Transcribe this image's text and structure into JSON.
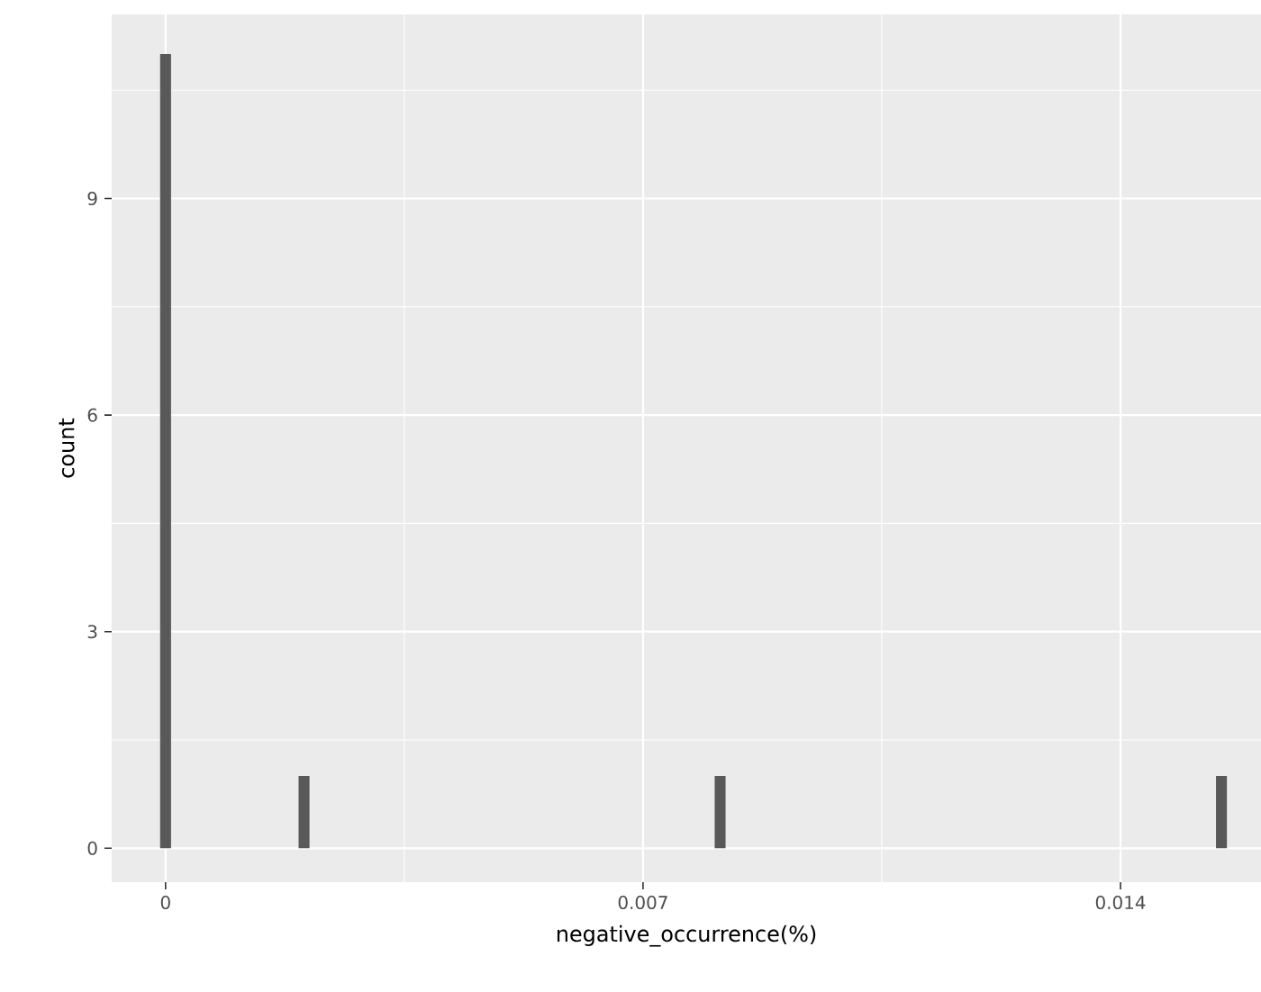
{
  "chart_data": {
    "type": "histogram",
    "xlabel": "negative_occurrence(%)",
    "ylabel": "count",
    "bins": [
      -8e-05,
      8e-05,
      0.00195,
      0.00211,
      0.00805,
      0.00821,
      0.0154,
      0.01556
    ],
    "values": [
      11,
      0,
      1,
      0,
      1,
      0,
      1
    ],
    "color": "#595959",
    "xlim": [
      -0.00079,
      0.01606
    ],
    "ylim": [
      -0.47,
      11.55
    ],
    "xticks": [
      {
        "value": 0,
        "label": "0"
      },
      {
        "value": 0.007,
        "label": "0.007"
      },
      {
        "value": 0.014,
        "label": "0.014"
      }
    ],
    "yticks": [
      {
        "value": 0,
        "label": "0"
      },
      {
        "value": 3,
        "label": "3"
      },
      {
        "value": 6,
        "label": "6"
      },
      {
        "value": 9,
        "label": "9"
      }
    ],
    "grid": true
  }
}
